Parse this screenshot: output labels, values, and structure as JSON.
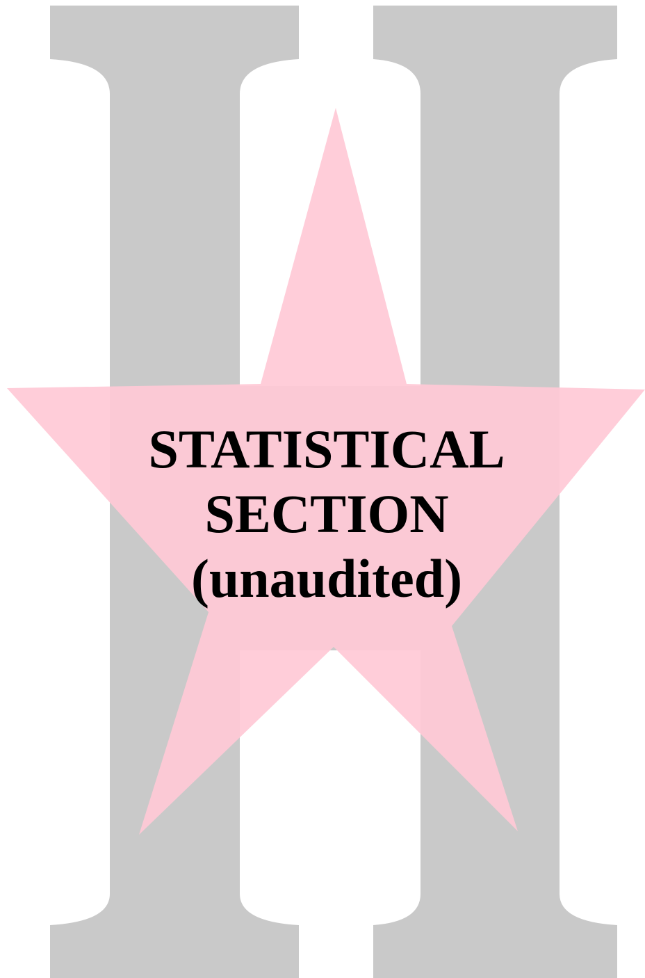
{
  "title": {
    "lines": [
      "STATISTICAL",
      "SECTION",
      "(unaudited)"
    ]
  }
}
